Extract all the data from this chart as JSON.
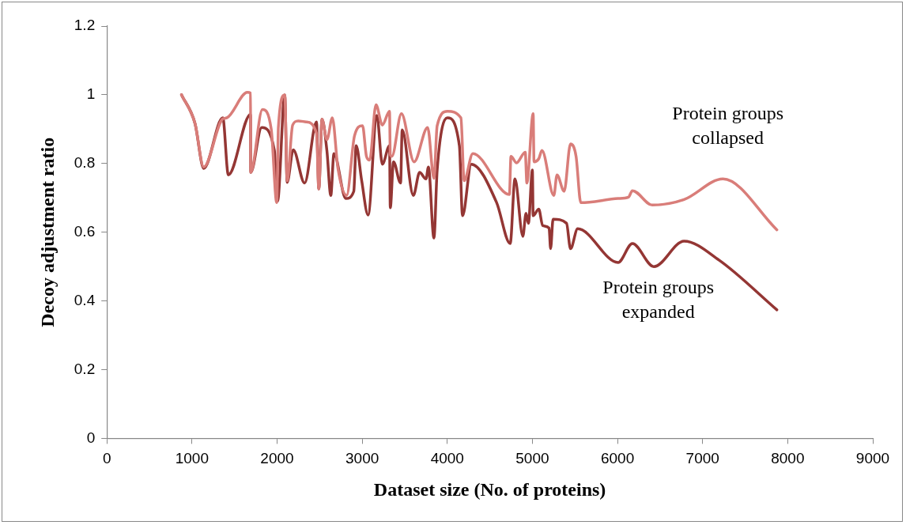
{
  "chart_data": {
    "type": "line",
    "xlabel": "Dataset size (No. of proteins)",
    "ylabel": "Decoy adjustment ratio",
    "xlim": [
      0,
      9000
    ],
    "xticks": [
      0,
      1000,
      2000,
      3000,
      4000,
      5000,
      6000,
      7000,
      8000,
      9000
    ],
    "ylim": [
      0,
      1.2
    ],
    "yticks": [
      0,
      0.2,
      0.4,
      0.6,
      0.8,
      1,
      1.2
    ],
    "legend": false,
    "marker": "none",
    "line_style": "solid",
    "series": [
      {
        "name": "Protein groups collapsed",
        "color": "#d97d79",
        "x": [
          877,
          1035,
          1138,
          1362,
          1409,
          1651,
          1688,
          1690,
          1828,
          1931,
          1996,
          2015,
          2090,
          2118,
          2183,
          2248,
          2341,
          2463,
          2490,
          2528,
          2585,
          2649,
          2715,
          2817,
          2910,
          3004,
          3050,
          3088,
          3162,
          3237,
          3321,
          3330,
          3349,
          3461,
          3610,
          3769,
          3843,
          3881,
          4002,
          4160,
          4198,
          4300,
          4730,
          4748,
          4814,
          4916,
          4935,
          5009,
          5019,
          5075,
          5112,
          5252,
          5289,
          5373,
          5448,
          5513,
          5569,
          6007,
          6129,
          6175,
          6409,
          6782,
          7239,
          7873
        ],
        "values": [
          1.0,
          0.917,
          0.79,
          0.93,
          0.933,
          1.007,
          1.005,
          0.774,
          0.957,
          0.9,
          0.686,
          0.905,
          1.0,
          0.75,
          0.912,
          0.924,
          0.921,
          0.888,
          0.726,
          0.929,
          0.869,
          0.933,
          0.786,
          0.707,
          0.881,
          0.91,
          0.821,
          0.81,
          0.971,
          0.912,
          0.952,
          0.826,
          0.821,
          0.945,
          0.805,
          0.905,
          0.757,
          0.91,
          0.952,
          0.933,
          0.75,
          0.829,
          0.71,
          0.821,
          0.802,
          0.833,
          0.743,
          0.945,
          0.805,
          0.814,
          0.838,
          0.707,
          0.767,
          0.719,
          0.857,
          0.821,
          0.686,
          0.698,
          0.702,
          0.721,
          0.679,
          0.695,
          0.755,
          0.607
        ]
      },
      {
        "name": "Protein groups expanded",
        "color": "#943634",
        "x": [
          877,
          1035,
          1138,
          1362,
          1427,
          1688,
          1690,
          1819,
          1968,
          2005,
          2090,
          2118,
          2190,
          2323,
          2463,
          2490,
          2528,
          2585,
          2631,
          2668,
          2808,
          2901,
          2929,
          2994,
          3069,
          3172,
          3237,
          3321,
          3330,
          3368,
          3451,
          3470,
          3601,
          3675,
          3750,
          3778,
          3843,
          3881,
          4002,
          4142,
          4179,
          4282,
          4580,
          4739,
          4795,
          4888,
          4925,
          4953,
          5000,
          5009,
          5075,
          5121,
          5196,
          5214,
          5243,
          5401,
          5448,
          5532,
          6007,
          6175,
          6427,
          6782,
          7192,
          7873
        ],
        "values": [
          1.0,
          0.917,
          0.786,
          0.933,
          0.767,
          0.943,
          0.774,
          0.905,
          0.838,
          0.69,
          1.0,
          0.745,
          0.84,
          0.743,
          0.921,
          0.726,
          0.929,
          0.838,
          0.707,
          0.829,
          0.698,
          0.719,
          0.852,
          0.75,
          0.65,
          0.94,
          0.798,
          0.852,
          0.671,
          0.805,
          0.743,
          0.898,
          0.707,
          0.774,
          0.755,
          0.79,
          0.583,
          0.781,
          0.933,
          0.852,
          0.648,
          0.798,
          0.686,
          0.567,
          0.755,
          0.588,
          0.655,
          0.626,
          0.781,
          0.648,
          0.667,
          0.619,
          0.612,
          0.552,
          0.638,
          0.626,
          0.552,
          0.61,
          0.512,
          0.567,
          0.5,
          0.574,
          0.519,
          0.374
        ]
      }
    ]
  }
}
